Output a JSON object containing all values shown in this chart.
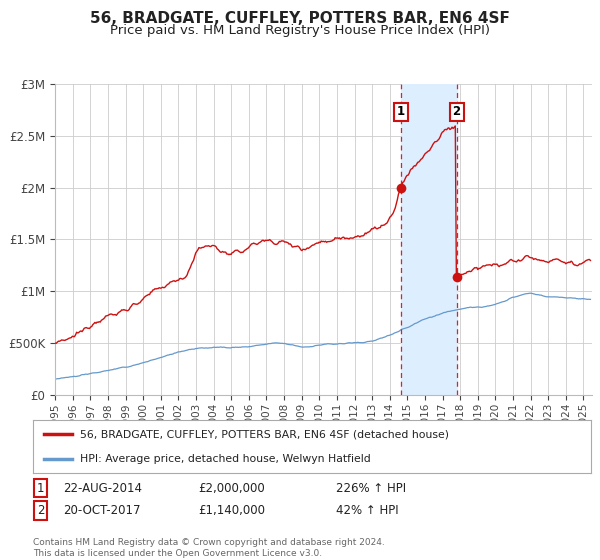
{
  "title": "56, BRADGATE, CUFFLEY, POTTERS BAR, EN6 4SF",
  "subtitle": "Price paid vs. HM Land Registry's House Price Index (HPI)",
  "ylim": [
    0,
    3000000
  ],
  "xlim_start": 1995.0,
  "xlim_end": 2025.5,
  "yticks": [
    0,
    500000,
    1000000,
    1500000,
    2000000,
    2500000,
    3000000
  ],
  "ytick_labels": [
    "£0",
    "£500K",
    "£1M",
    "£1.5M",
    "£2M",
    "£2.5M",
    "£3M"
  ],
  "xtick_years": [
    1995,
    1996,
    1997,
    1998,
    1999,
    2000,
    2001,
    2002,
    2003,
    2004,
    2005,
    2006,
    2007,
    2008,
    2009,
    2010,
    2011,
    2012,
    2013,
    2014,
    2015,
    2016,
    2017,
    2018,
    2019,
    2020,
    2021,
    2022,
    2023,
    2024,
    2025
  ],
  "transaction1_date": 2014.644,
  "transaction1_value": 2000000,
  "transaction2_date": 2017.8,
  "transaction2_value": 1140000,
  "shade_color": "#ddeeff",
  "dashed_color": "#dd2222",
  "red_line_color": "#cc1111",
  "blue_line_color": "#6699cc",
  "legend_label1": "56, BRADGATE, CUFFLEY, POTTERS BAR, EN6 4SF (detached house)",
  "legend_label2": "HPI: Average price, detached house, Welwyn Hatfield",
  "annotation1": [
    "1",
    "22-AUG-2014",
    "£2,000,000",
    "226% ↑ HPI"
  ],
  "annotation2": [
    "2",
    "20-OCT-2017",
    "£1,140,000",
    "42% ↑ HPI"
  ],
  "footer": "Contains HM Land Registry data © Crown copyright and database right 2024.\nThis data is licensed under the Open Government Licence v3.0.",
  "bg_color": "#ffffff",
  "grid_color": "#cccccc",
  "title_fontsize": 11,
  "subtitle_fontsize": 9.5
}
